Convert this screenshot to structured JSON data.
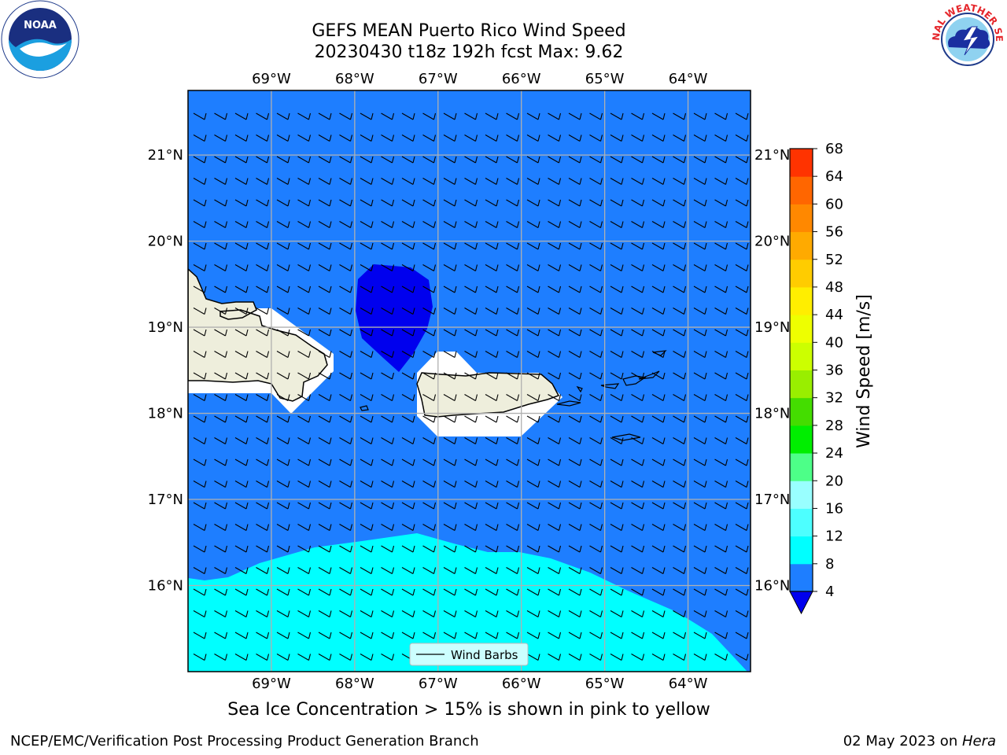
{
  "title": {
    "line1": "GEFS MEAN Puerto Rico Wind Speed",
    "line2": "20230430 t18z 192h fcst   Max: 9.62"
  },
  "logos": {
    "left": {
      "name": "noaa-logo",
      "text": "NOAA"
    },
    "right": {
      "name": "nws-logo",
      "text": "NATIONAL WEATHER SERVICE"
    }
  },
  "map": {
    "extent": {
      "lon": [
        -70.0,
        -63.25
      ],
      "lat": [
        15.0,
        21.75
      ]
    },
    "lon_ticks": [
      "69°W",
      "68°W",
      "67°W",
      "66°W",
      "65°W",
      "64°W"
    ],
    "lat_ticks": [
      "21°N",
      "20°N",
      "19°N",
      "18°N",
      "17°N",
      "16°N"
    ],
    "legend_label": "Wind Barbs",
    "colors": {
      "ocean_4_8": "#1e7eff",
      "band_8_12": "#00ffff",
      "band_below_4": "#0000ee",
      "land": "#eeeedc",
      "grid": "#b0b0b0"
    }
  },
  "colorbar": {
    "label": "Wind Speed [m/s]",
    "ticks": [
      "68",
      "64",
      "60",
      "56",
      "52",
      "48",
      "44",
      "40",
      "36",
      "32",
      "28",
      "24",
      "20",
      "16",
      "12",
      "8",
      "4"
    ],
    "colors": [
      "#0000ee",
      "#1e7eff",
      "#00ffff",
      "#4dffff",
      "#99ffff",
      "#4dff88",
      "#00ee00",
      "#44dd00",
      "#99ee00",
      "#ccff00",
      "#eeff00",
      "#ffee00",
      "#ffcc00",
      "#ffaa00",
      "#ff8800",
      "#ff6600",
      "#ff3300",
      "#ff0000"
    ]
  },
  "note": "Sea Ice Concentration > 15% is shown in pink to yellow",
  "footer": {
    "left": "NCEP/EMC/Verification Post Processing Product Generation Branch",
    "right_prefix": "02 May 2023 on ",
    "right_host": "Hera"
  }
}
